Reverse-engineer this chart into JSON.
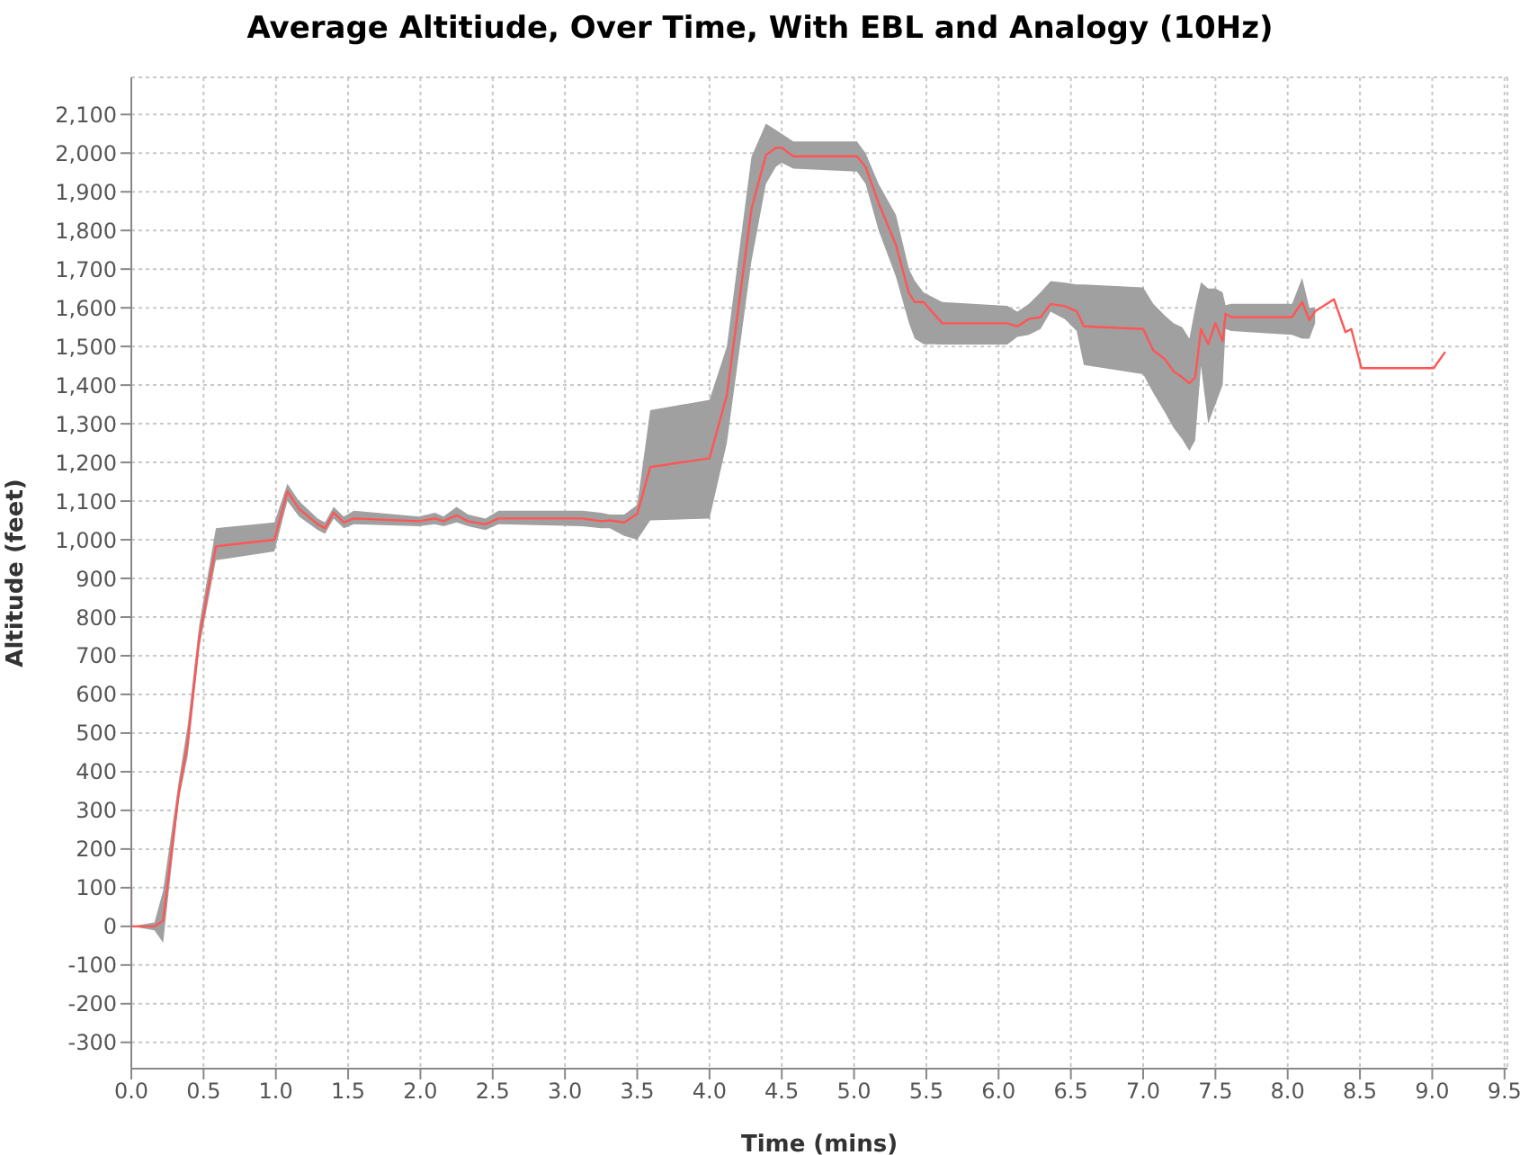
{
  "chart_data": {
    "type": "line",
    "title": "Average Altitiude, Over Time, With EBL and Analogy (10Hz)",
    "xlabel": "Time (mins)",
    "ylabel": "Altitude (feet)",
    "grid": true,
    "legend": false,
    "marker": "none",
    "line_style": "solid",
    "xlim": [
      0,
      9.52
    ],
    "ylim": [
      -368,
      2196
    ],
    "xticks": [
      {
        "value": 0,
        "label": "0.0"
      },
      0.5,
      {
        "value": 1,
        "label": "1.0"
      },
      1.5,
      {
        "value": 2,
        "label": "2.0"
      },
      2.5,
      {
        "value": 3,
        "label": "3.0"
      },
      3.5,
      {
        "value": 4,
        "label": "4.0"
      },
      4.5,
      {
        "value": 5,
        "label": "5.0"
      },
      5.5,
      {
        "value": 6,
        "label": "6.0"
      },
      6.5,
      {
        "value": 7,
        "label": "7.0"
      },
      7.5,
      {
        "value": 8,
        "label": "8.0"
      },
      8.5,
      {
        "value": 9,
        "label": "9.0"
      },
      9.5
    ],
    "yticks": [
      -300,
      -200,
      -100,
      0,
      100,
      200,
      300,
      400,
      500,
      600,
      700,
      800,
      900,
      {
        "value": 1000,
        "label": "1,000"
      },
      {
        "value": 1100,
        "label": "1,100"
      },
      {
        "value": 1200,
        "label": "1,200"
      },
      {
        "value": 1300,
        "label": "1,300"
      },
      {
        "value": 1400,
        "label": "1,400"
      },
      {
        "value": 1500,
        "label": "1,500"
      },
      {
        "value": 1600,
        "label": "1,600"
      },
      {
        "value": 1700,
        "label": "1,700"
      },
      {
        "value": 1800,
        "label": "1,800"
      },
      {
        "value": 1900,
        "label": "1,900"
      },
      {
        "value": 2000,
        "label": "2,000"
      },
      {
        "value": 2100,
        "label": "2,100"
      }
    ],
    "x": [
      0,
      0,
      0.16,
      0.22,
      0.33,
      0.39,
      0.47,
      0.585,
      0.99,
      1.08,
      1.16,
      1.29,
      1.34,
      1.4,
      1.47,
      1.54,
      1.99,
      2.1,
      2.16,
      2.25,
      2.33,
      2.45,
      2.54,
      3.12,
      3.25,
      3.31,
      3.41,
      3.5,
      3.59,
      4.0,
      4.12,
      4.29,
      4.39,
      4.46,
      4.5,
      4.58,
      5.02,
      5.08,
      5.17,
      5.29,
      5.38,
      5.42,
      5.48,
      5.61,
      6.06,
      6.13,
      6.21,
      6.29,
      6.36,
      6.46,
      6.54,
      6.59,
      7.0,
      7.07,
      7.15,
      7.21,
      7.27,
      7.32,
      7.36,
      7.4,
      7.45,
      7.5,
      7.55,
      7.57,
      7.61,
      8.03,
      8.1,
      8.15,
      8.19,
      8.32,
      8.4,
      8.44,
      8.51,
      9.01,
      9.09
    ],
    "series": [
      {
        "color": "#ff5555",
        "values": [
          100,
          0,
          0,
          15,
          350,
          475,
          745,
          983,
          1000,
          1125,
          1080,
          1040,
          1030,
          1070,
          1045,
          1055,
          1048,
          1055,
          1048,
          1063,
          1048,
          1040,
          1055,
          1055,
          1048,
          1050,
          1045,
          1067,
          1188,
          1211,
          1374,
          1855,
          1995,
          2014,
          2014,
          1992,
          1992,
          1964,
          1871,
          1762,
          1638,
          1615,
          1615,
          1560,
          1560,
          1552,
          1571,
          1576,
          1610,
          1604,
          1591,
          1552,
          1545,
          1490,
          1467,
          1436,
          1420,
          1405,
          1420,
          1545,
          1506,
          1560,
          1514,
          1584,
          1576,
          1576,
          1615,
          1568,
          1591,
          1622,
          1537,
          1545,
          1444,
          1444,
          1486
        ],
        "upper": [
          null,
          0,
          10,
          92,
          380,
          520,
          780,
          1030,
          1045,
          1145,
          1100,
          1055,
          1045,
          1085,
          1060,
          1075,
          1060,
          1070,
          1060,
          1085,
          1065,
          1055,
          1075,
          1075,
          1070,
          1065,
          1065,
          1090,
          1335,
          1362,
          1500,
          1990,
          2076,
          2060,
          2050,
          2030,
          2030,
          2000,
          1920,
          1840,
          1700,
          1670,
          1640,
          1615,
          1605,
          1590,
          1610,
          1640,
          1669,
          1665,
          1660,
          1660,
          1653,
          1610,
          1580,
          1560,
          1550,
          1520,
          1600,
          1666,
          1650,
          1650,
          1640,
          1607,
          1610,
          1610,
          1677,
          1600,
          1600,
          null,
          null,
          null,
          null,
          null,
          null
        ],
        "lower": [
          null,
          0,
          -10,
          -42,
          330,
          440,
          720,
          947,
          970,
          1100,
          1060,
          1025,
          1015,
          1055,
          1030,
          1040,
          1035,
          1040,
          1035,
          1045,
          1035,
          1025,
          1040,
          1035,
          1030,
          1030,
          1010,
          1000,
          1050,
          1055,
          1250,
          1720,
          1920,
          1965,
          1975,
          1960,
          1952,
          1920,
          1800,
          1680,
          1560,
          1520,
          1506,
          1505,
          1505,
          1525,
          1530,
          1545,
          1590,
          1570,
          1540,
          1452,
          1428,
          1380,
          1330,
          1290,
          1260,
          1230,
          1257,
          1450,
          1300,
          1350,
          1400,
          1545,
          1540,
          1530,
          1520,
          1520,
          1560,
          null,
          null,
          null,
          null,
          null,
          null
        ]
      }
    ]
  }
}
